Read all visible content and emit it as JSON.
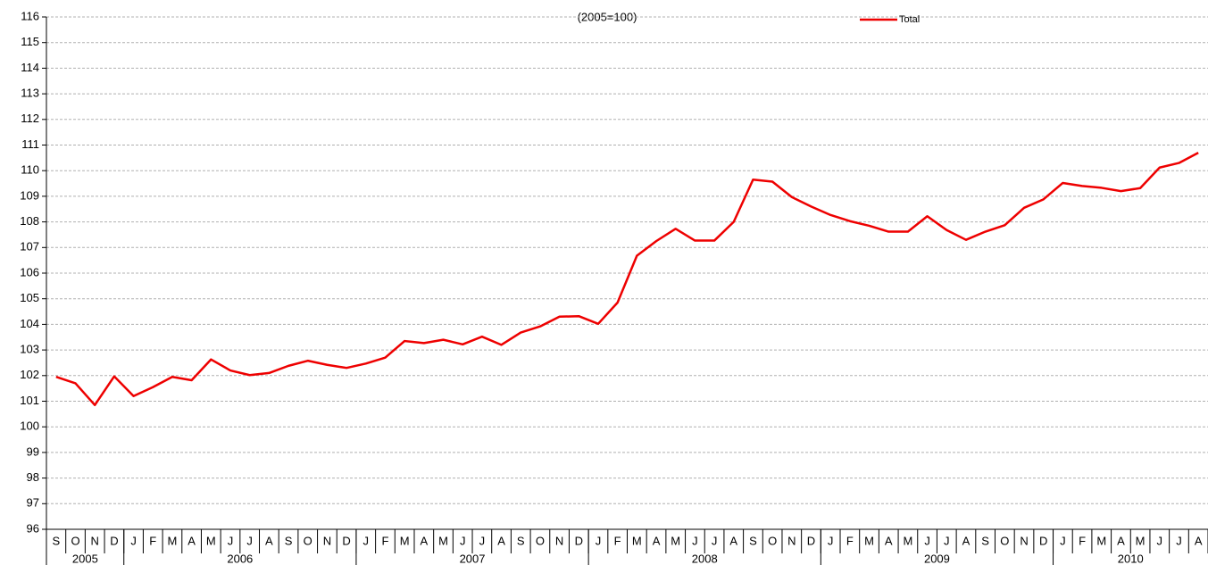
{
  "chart_data": {
    "type": "line",
    "title": "(2005=100)",
    "categories": [
      "S",
      "O",
      "N",
      "D",
      "J",
      "F",
      "M",
      "A",
      "M",
      "J",
      "J",
      "A",
      "S",
      "O",
      "N",
      "D",
      "J",
      "F",
      "M",
      "A",
      "M",
      "J",
      "J",
      "A",
      "S",
      "O",
      "N",
      "D",
      "J",
      "F",
      "M",
      "A",
      "M",
      "J",
      "J",
      "A",
      "S",
      "O",
      "N",
      "D",
      "J",
      "F",
      "M",
      "A",
      "M",
      "J",
      "J",
      "A",
      "S",
      "O",
      "N",
      "D",
      "J",
      "F",
      "M",
      "A",
      "M",
      "J",
      "J",
      "A"
    ],
    "years": [
      "2005",
      "2006",
      "2007",
      "2008",
      "2009",
      "2010"
    ],
    "series": [
      {
        "name": "Total",
        "color": "#ee0000",
        "values": [
          101.95,
          101.7,
          100.85,
          101.97,
          101.2,
          101.55,
          101.95,
          101.82,
          102.63,
          102.2,
          102.02,
          102.1,
          102.38,
          102.58,
          102.42,
          102.3,
          102.47,
          102.7,
          103.35,
          103.27,
          103.4,
          103.22,
          103.52,
          103.2,
          103.68,
          103.92,
          104.3,
          104.32,
          104.02,
          104.85,
          106.68,
          107.25,
          107.73,
          107.27,
          107.27,
          108.0,
          109.65,
          109.57,
          108.97,
          108.6,
          108.27,
          108.03,
          107.85,
          107.62,
          107.62,
          108.22,
          107.68,
          107.3,
          107.62,
          107.87,
          108.55,
          108.88,
          109.52,
          109.4,
          109.33,
          109.2,
          109.32,
          110.12,
          110.3,
          110.7
        ]
      }
    ],
    "ylim": [
      96,
      116
    ],
    "yticks": [
      96,
      97,
      98,
      99,
      100,
      101,
      102,
      103,
      104,
      105,
      106,
      107,
      108,
      109,
      110,
      111,
      112,
      113,
      114,
      115,
      116
    ],
    "grid": true,
    "legend": "top"
  }
}
